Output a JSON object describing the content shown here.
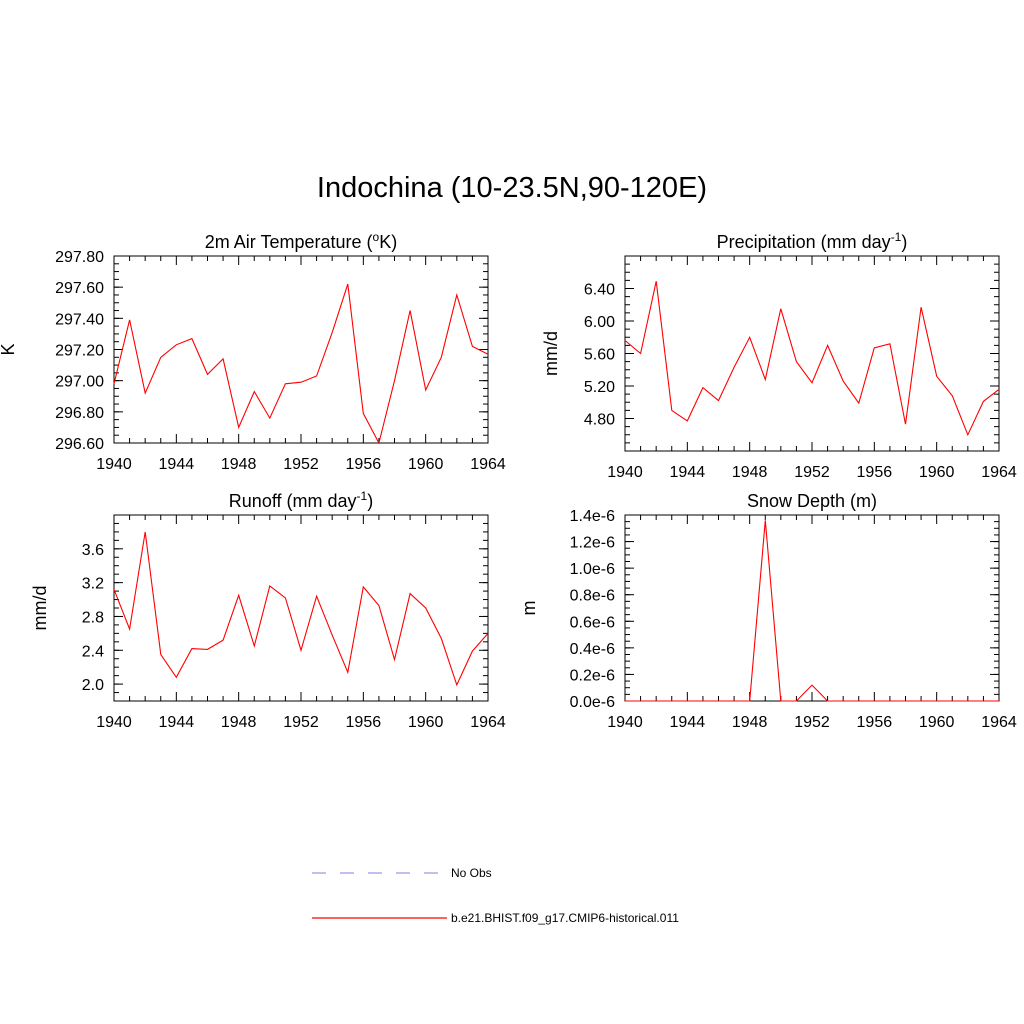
{
  "title": "Indochina (10-23.5N,90-120E)",
  "colors": {
    "model": "#ff0000",
    "obs": "#9999ee"
  },
  "legend": {
    "obs_label": "No Obs",
    "model_label": "b.e21.BHIST.f09_g17.CMIP6-historical.011"
  },
  "chart_data": [
    {
      "type": "line",
      "title": "2m Air Temperature (",
      "title_sup": "o",
      "title_end": "K)",
      "ylabel": "K",
      "xlim": [
        1940,
        1964
      ],
      "ylim": [
        296.6,
        297.8
      ],
      "xticks": [
        1940,
        1944,
        1948,
        1952,
        1956,
        1960,
        1964
      ],
      "yticks": [
        "296.60",
        "296.80",
        "297.00",
        "297.20",
        "297.40",
        "297.60",
        "297.80"
      ],
      "ytick_values": [
        296.6,
        296.8,
        297.0,
        297.2,
        297.4,
        297.6,
        297.8
      ],
      "series": [
        {
          "x": [
            1940,
            1941,
            1942,
            1943,
            1944,
            1945,
            1946,
            1947,
            1948,
            1949,
            1950,
            1951,
            1952,
            1953,
            1954,
            1955,
            1956,
            1957,
            1958,
            1959,
            1960,
            1961,
            1962,
            1963,
            1964
          ],
          "values": [
            296.98,
            297.39,
            296.92,
            297.15,
            297.23,
            297.27,
            297.04,
            297.14,
            296.7,
            296.93,
            296.76,
            296.98,
            296.99,
            297.03,
            297.31,
            297.62,
            296.79,
            296.6,
            297.0,
            297.45,
            296.94,
            297.15,
            297.55,
            297.22,
            297.17
          ]
        }
      ]
    },
    {
      "type": "line",
      "title": "Precipitation (mm day",
      "title_sup": "-1",
      "title_end": ")",
      "ylabel": "mm/d",
      "xlim": [
        1940,
        1964
      ],
      "ylim": [
        4.4,
        6.8
      ],
      "xticks": [
        1940,
        1944,
        1948,
        1952,
        1956,
        1960,
        1964
      ],
      "yticks": [
        "4.80",
        "5.20",
        "5.60",
        "6.00",
        "6.40"
      ],
      "ytick_values": [
        4.8,
        5.2,
        5.6,
        6.0,
        6.4
      ],
      "series": [
        {
          "x": [
            1940,
            1941,
            1942,
            1943,
            1944,
            1945,
            1946,
            1947,
            1948,
            1949,
            1950,
            1951,
            1952,
            1953,
            1954,
            1955,
            1956,
            1957,
            1958,
            1959,
            1960,
            1961,
            1962,
            1963,
            1964
          ],
          "values": [
            5.76,
            5.6,
            6.49,
            4.9,
            4.77,
            5.18,
            5.02,
            5.43,
            5.8,
            5.28,
            6.15,
            5.5,
            5.24,
            5.7,
            5.26,
            4.99,
            5.67,
            5.72,
            4.73,
            6.17,
            5.32,
            5.08,
            4.6,
            5.01,
            5.16
          ]
        }
      ]
    },
    {
      "type": "line",
      "title": "Runoff (mm day",
      "title_sup": "-1",
      "title_end": ")",
      "ylabel": "mm/d",
      "xlim": [
        1940,
        1964
      ],
      "ylim": [
        1.8,
        4.0
      ],
      "xticks": [
        1940,
        1944,
        1948,
        1952,
        1956,
        1960,
        1964
      ],
      "yticks": [
        "2.0",
        "2.4",
        "2.8",
        "3.2",
        "3.6"
      ],
      "ytick_values": [
        2.0,
        2.4,
        2.8,
        3.2,
        3.6
      ],
      "series": [
        {
          "x": [
            1940,
            1941,
            1942,
            1943,
            1944,
            1945,
            1946,
            1947,
            1948,
            1949,
            1950,
            1951,
            1952,
            1953,
            1954,
            1955,
            1956,
            1957,
            1958,
            1959,
            1960,
            1961,
            1962,
            1963,
            1964
          ],
          "values": [
            3.12,
            2.65,
            3.8,
            2.35,
            2.08,
            2.42,
            2.41,
            2.52,
            3.05,
            2.45,
            3.16,
            3.02,
            2.4,
            3.04,
            2.58,
            2.14,
            3.15,
            2.93,
            2.29,
            3.07,
            2.9,
            2.54,
            1.99,
            2.39,
            2.6
          ]
        }
      ]
    },
    {
      "type": "line",
      "title": "Snow Depth (m)",
      "title_sup": "",
      "title_end": "",
      "ylabel": "m",
      "xlim": [
        1940,
        1964
      ],
      "ylim": [
        0,
        1.4e-06
      ],
      "xticks": [
        1940,
        1944,
        1948,
        1952,
        1956,
        1960,
        1964
      ],
      "yticks": [
        "0.0e-6",
        "0.2e-6",
        "0.4e-6",
        "0.6e-6",
        "0.8e-6",
        "1.0e-6",
        "1.2e-6",
        "1.4e-6"
      ],
      "ytick_values": [
        0,
        2e-07,
        4e-07,
        6e-07,
        8e-07,
        1e-06,
        1.2e-06,
        1.4e-06
      ],
      "series": [
        {
          "x": [
            1940,
            1941,
            1942,
            1943,
            1944,
            1945,
            1946,
            1947,
            1948,
            1949,
            1950,
            1951,
            1952,
            1953,
            1954,
            1955,
            1956,
            1957,
            1958,
            1959,
            1960,
            1961,
            1962,
            1963,
            1964
          ],
          "values": [
            0,
            0,
            0,
            0,
            0,
            0,
            0,
            0,
            0,
            1.36e-06,
            0,
            0,
            1.2e-07,
            0,
            0,
            0,
            0,
            0,
            0,
            0,
            0,
            0,
            0,
            0,
            0
          ]
        }
      ]
    }
  ]
}
